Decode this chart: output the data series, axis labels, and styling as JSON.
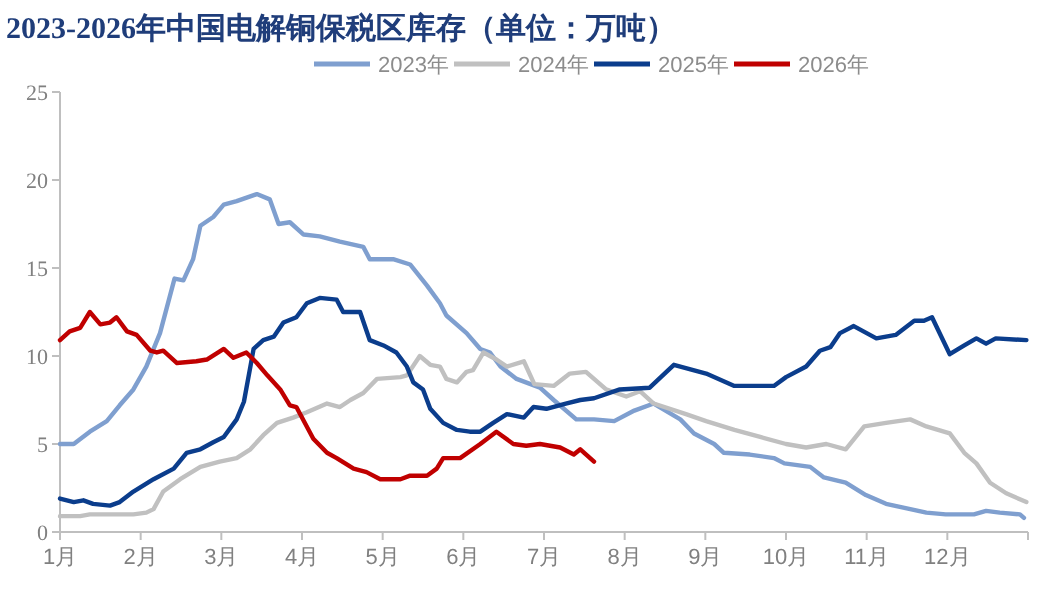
{
  "chart_data": {
    "type": "line",
    "title": "2023-2026年中国电解铜保税区库存（单位：万吨）",
    "legend": "top",
    "grid": false,
    "marker": "none",
    "line_style": "solid",
    "xlim": [
      1,
      13
    ],
    "xticks": [
      {
        "value": 1,
        "label": "1月"
      },
      {
        "value": 2,
        "label": "2月"
      },
      {
        "value": 3,
        "label": "3月"
      },
      {
        "value": 4,
        "label": "4月"
      },
      {
        "value": 5,
        "label": "5月"
      },
      {
        "value": 6,
        "label": "6月"
      },
      {
        "value": 7,
        "label": "7月"
      },
      {
        "value": 8,
        "label": "8月"
      },
      {
        "value": 9,
        "label": "9月"
      },
      {
        "value": 10,
        "label": "10月"
      },
      {
        "value": 11,
        "label": "11月"
      },
      {
        "value": 12,
        "label": "12月"
      },
      {
        "value": 13,
        "label": null
      }
    ],
    "ylim": [
      0,
      25
    ],
    "yticks": [
      0,
      5,
      10,
      15,
      20,
      25
    ],
    "series": [
      {
        "name": "2023年",
        "color": "#7f9fcf",
        "x": [
          1.0,
          1.17,
          1.37,
          1.58,
          1.74,
          1.91,
          2.07,
          2.24,
          2.42,
          2.53,
          2.65,
          2.74,
          2.9,
          3.03,
          3.19,
          3.44,
          3.6,
          3.71,
          3.85,
          4.02,
          4.22,
          4.47,
          4.76,
          4.84,
          5.13,
          5.34,
          5.55,
          5.71,
          5.79,
          6.04,
          6.21,
          6.33,
          6.46,
          6.66,
          6.95,
          7.12,
          7.4,
          7.62,
          7.87,
          8.12,
          8.36,
          8.69,
          8.86,
          9.11,
          9.23,
          9.55,
          9.85,
          9.98,
          10.3,
          10.47,
          10.74,
          10.99,
          11.24,
          11.74,
          11.98,
          12.33,
          12.48,
          12.65,
          12.9,
          12.95
        ],
        "values": [
          5.0,
          5.0,
          5.7,
          6.3,
          7.2,
          8.1,
          9.4,
          11.3,
          14.4,
          14.3,
          15.5,
          17.4,
          17.9,
          18.6,
          18.8,
          19.2,
          18.9,
          17.5,
          17.6,
          16.9,
          16.8,
          16.5,
          16.2,
          15.5,
          15.5,
          15.2,
          14.0,
          13.0,
          12.3,
          11.3,
          10.4,
          10.2,
          9.4,
          8.7,
          8.2,
          7.5,
          6.4,
          6.4,
          6.3,
          6.9,
          7.3,
          6.4,
          5.6,
          5.0,
          4.5,
          4.4,
          4.2,
          3.9,
          3.7,
          3.1,
          2.8,
          2.1,
          1.6,
          1.1,
          1.0,
          1.0,
          1.2,
          1.1,
          1.0,
          0.8
        ]
      },
      {
        "name": "2024年",
        "color": "#c0c0c0",
        "x": [
          1.0,
          1.25,
          1.37,
          1.66,
          1.91,
          2.07,
          2.16,
          2.28,
          2.49,
          2.74,
          2.98,
          3.19,
          3.36,
          3.52,
          3.69,
          3.89,
          4.06,
          4.31,
          4.47,
          4.6,
          4.76,
          4.93,
          5.22,
          5.3,
          5.46,
          5.59,
          5.71,
          5.79,
          5.92,
          6.04,
          6.12,
          6.25,
          6.41,
          6.54,
          6.75,
          6.88,
          7.12,
          7.32,
          7.52,
          7.77,
          8.02,
          8.19,
          8.36,
          8.76,
          9.01,
          9.36,
          9.68,
          10.0,
          10.25,
          10.5,
          10.74,
          10.97,
          11.24,
          11.54,
          11.74,
          12.03,
          12.21,
          12.36,
          12.53,
          12.73,
          12.98
        ],
        "values": [
          0.9,
          0.9,
          1.0,
          1.0,
          1.0,
          1.1,
          1.3,
          2.3,
          3.0,
          3.7,
          4.0,
          4.2,
          4.7,
          5.5,
          6.2,
          6.5,
          6.8,
          7.3,
          7.1,
          7.5,
          7.9,
          8.7,
          8.8,
          8.9,
          10.0,
          9.5,
          9.4,
          8.7,
          8.5,
          9.1,
          9.2,
          10.2,
          9.8,
          9.4,
          9.7,
          8.4,
          8.3,
          9.0,
          9.1,
          8.1,
          7.7,
          8.0,
          7.3,
          6.7,
          6.3,
          5.8,
          5.4,
          5.0,
          4.8,
          5.0,
          4.7,
          6.0,
          6.2,
          6.4,
          6.0,
          5.6,
          4.5,
          3.9,
          2.8,
          2.2,
          1.7
        ]
      },
      {
        "name": "2025年",
        "color": "#0b3d8c",
        "x": [
          1.0,
          1.17,
          1.29,
          1.41,
          1.62,
          1.74,
          1.91,
          2.16,
          2.41,
          2.57,
          2.74,
          2.9,
          3.03,
          3.19,
          3.28,
          3.36,
          3.4,
          3.52,
          3.65,
          3.77,
          3.93,
          4.06,
          4.22,
          4.43,
          4.51,
          4.72,
          4.84,
          5.01,
          5.17,
          5.3,
          5.38,
          5.5,
          5.59,
          5.75,
          5.92,
          6.08,
          6.21,
          6.37,
          6.54,
          6.75,
          6.87,
          7.03,
          7.27,
          7.45,
          7.62,
          7.94,
          8.31,
          8.61,
          9.01,
          9.36,
          9.63,
          9.85,
          10.0,
          10.25,
          10.42,
          10.55,
          10.67,
          10.84,
          11.12,
          11.36,
          11.59,
          11.71,
          11.81,
          12.03,
          12.21,
          12.36,
          12.48,
          12.6,
          12.98
        ],
        "values": [
          1.9,
          1.7,
          1.8,
          1.6,
          1.5,
          1.7,
          2.3,
          3.0,
          3.6,
          4.5,
          4.7,
          5.1,
          5.4,
          6.4,
          7.4,
          9.4,
          10.4,
          10.9,
          11.1,
          11.9,
          12.2,
          13.0,
          13.3,
          13.2,
          12.5,
          12.5,
          10.9,
          10.6,
          10.2,
          9.4,
          8.5,
          8.1,
          7.0,
          6.2,
          5.8,
          5.7,
          5.7,
          6.2,
          6.7,
          6.5,
          7.1,
          7.0,
          7.3,
          7.5,
          7.6,
          8.1,
          8.2,
          9.5,
          9.0,
          8.3,
          8.3,
          8.3,
          8.8,
          9.4,
          10.3,
          10.5,
          11.3,
          11.7,
          11.0,
          11.2,
          12.0,
          12.0,
          12.2,
          10.1,
          10.6,
          11.0,
          10.7,
          11.0,
          10.9
        ]
      },
      {
        "name": "2026年",
        "color": "#c00000",
        "x": [
          1.0,
          1.12,
          1.25,
          1.37,
          1.5,
          1.62,
          1.7,
          1.83,
          1.95,
          2.12,
          2.2,
          2.28,
          2.45,
          2.69,
          2.82,
          3.03,
          3.15,
          3.31,
          3.44,
          3.57,
          3.73,
          3.85,
          3.93,
          4.14,
          4.31,
          4.43,
          4.64,
          4.8,
          4.97,
          5.22,
          5.34,
          5.55,
          5.67,
          5.75,
          5.96,
          6.21,
          6.41,
          6.62,
          6.78,
          6.95,
          7.2,
          7.37,
          7.45,
          7.62
        ],
        "values": [
          10.9,
          11.4,
          11.6,
          12.5,
          11.8,
          11.9,
          12.2,
          11.4,
          11.2,
          10.3,
          10.2,
          10.3,
          9.6,
          9.7,
          9.8,
          10.4,
          9.9,
          10.2,
          9.6,
          8.9,
          8.1,
          7.2,
          7.1,
          5.3,
          4.5,
          4.2,
          3.6,
          3.4,
          3.0,
          3.0,
          3.2,
          3.2,
          3.6,
          4.2,
          4.2,
          5.0,
          5.7,
          5.0,
          4.9,
          5.0,
          4.8,
          4.4,
          4.7,
          4.0
        ]
      }
    ]
  }
}
